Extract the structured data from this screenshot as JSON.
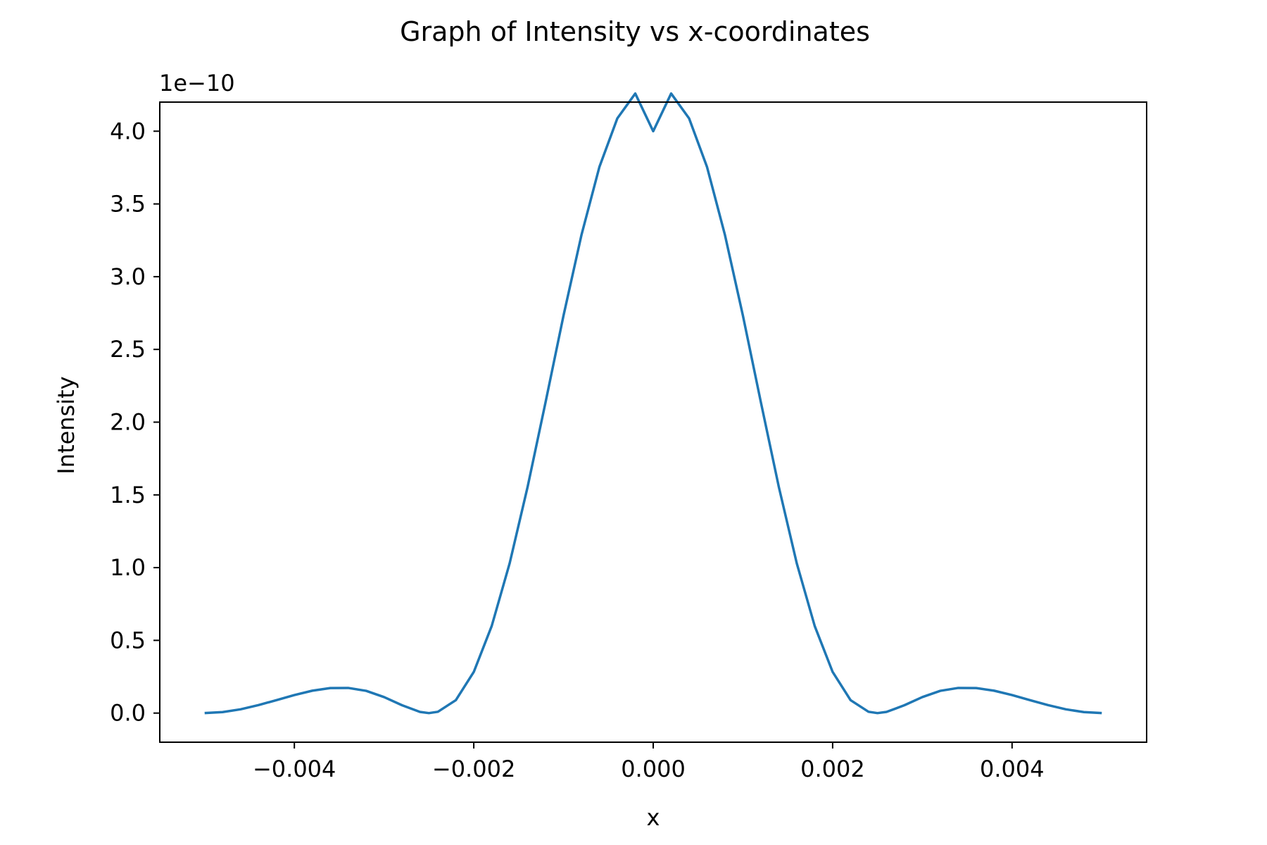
{
  "chart_data": {
    "type": "line",
    "title": "Graph of Intensity vs x-coordinates",
    "xlabel": "x",
    "ylabel": "Intensity",
    "y_offset_text": "1e−10",
    "xlim": [
      -0.0055,
      0.0055
    ],
    "ylim": [
      -0.2,
      4.2
    ],
    "x_ticks": [
      -0.004,
      -0.002,
      0.0,
      0.002,
      0.004
    ],
    "x_tick_labels": [
      "−0.004",
      "−0.002",
      "0.000",
      "0.002",
      "0.004"
    ],
    "y_ticks": [
      0.0,
      0.5,
      1.0,
      1.5,
      2.0,
      2.5,
      3.0,
      3.5,
      4.0
    ],
    "y_tick_labels": [
      "0.0",
      "0.5",
      "1.0",
      "1.5",
      "2.0",
      "2.5",
      "3.0",
      "3.5",
      "4.0"
    ],
    "grid": false,
    "series": [
      {
        "color": "#1f77b4",
        "x": [
          -0.005,
          -0.0048,
          -0.0046,
          -0.0044,
          -0.0042,
          -0.004,
          -0.0038,
          -0.0036,
          -0.0034,
          -0.0032,
          -0.003,
          -0.0028,
          -0.0026,
          -0.0025,
          -0.0024,
          -0.0022,
          -0.002,
          -0.0018,
          -0.0016,
          -0.0014,
          -0.0012,
          -0.001,
          -0.0008,
          -0.0006,
          -0.0004,
          -0.0002,
          0.0,
          0.0002,
          0.0004,
          0.0006,
          0.0008,
          0.001,
          0.0012,
          0.0014,
          0.0016,
          0.0018,
          0.002,
          0.0022,
          0.0024,
          0.0025,
          0.0026,
          0.0028,
          0.003,
          0.0032,
          0.0034,
          0.0036,
          0.0038,
          0.004,
          0.0042,
          0.0044,
          0.0046,
          0.0048,
          0.005
        ],
        "y": [
          0.0,
          0.007,
          0.026,
          0.055,
          0.089,
          0.124,
          0.154,
          0.172,
          0.173,
          0.153,
          0.11,
          0.054,
          0.008,
          0.0,
          0.009,
          0.089,
          0.283,
          0.599,
          1.03,
          1.555,
          2.137,
          2.732,
          3.286,
          3.754,
          4.088,
          4.259,
          4.0,
          4.259,
          4.088,
          3.754,
          3.286,
          2.732,
          2.137,
          1.555,
          1.03,
          0.599,
          0.283,
          0.089,
          0.009,
          0.0,
          0.008,
          0.054,
          0.11,
          0.153,
          0.173,
          0.172,
          0.154,
          0.124,
          0.089,
          0.055,
          0.026,
          0.007,
          0.0
        ]
      }
    ]
  }
}
